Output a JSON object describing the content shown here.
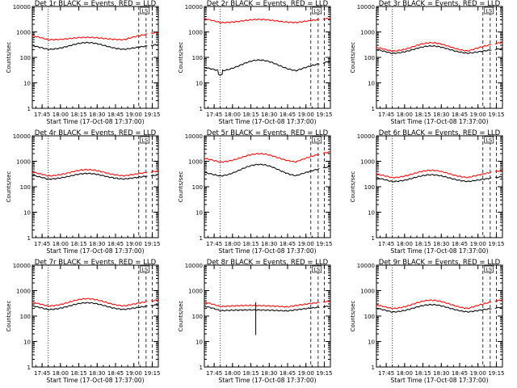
{
  "chart_data": [
    {
      "type": "line",
      "title": "Det 1r BLACK = Events, RED = LLD",
      "xlabel": "Start Time (17-Oct-08 17:37:00)",
      "ylabel": "Counts/sec",
      "yscale": "log",
      "ylim": [
        1,
        10000
      ],
      "x_ticks": [
        "17:45",
        "18:00",
        "18:15",
        "18:30",
        "18:45",
        "19:00",
        "19:15"
      ],
      "y_ticks": [
        "1",
        "10",
        "100",
        "1000",
        "10000"
      ],
      "annotation": "LS",
      "series": [
        {
          "color": "#ff0000",
          "profile": "main",
          "base": 490,
          "hump": 1.25,
          "end": 2.0
        },
        {
          "color": "#000000",
          "profile": "main",
          "base": 200,
          "hump": 1.9,
          "end": 1.6
        }
      ]
    },
    {
      "type": "line",
      "title": "Det 2r BLACK = Events, RED = LLD",
      "xlabel": "Start Time (17-Oct-08 17:37:00)",
      "ylabel": "Counts/sec",
      "yscale": "log",
      "ylim": [
        1,
        10000
      ],
      "x_ticks": [
        "17:45",
        "18:00",
        "18:15",
        "18:30",
        "18:45",
        "19:00",
        "19:15"
      ],
      "y_ticks": [
        "1",
        "10",
        "100",
        "1000",
        "10000"
      ],
      "annotation": "LS",
      "series": [
        {
          "color": "#ff0000",
          "profile": "flat",
          "base": 2300,
          "hump": 1.35,
          "end": 1.5
        },
        {
          "color": "#000000",
          "profile": "low",
          "base": 28,
          "hump": 2.8,
          "end": 2.5
        }
      ]
    },
    {
      "type": "line",
      "title": "Det 3r BLACK = Events, RED = LLD",
      "xlabel": "Start Time (17-Oct-08 17:37:00)",
      "ylabel": "Counts/sec",
      "yscale": "log",
      "ylim": [
        1,
        10000
      ],
      "x_ticks": [
        "17:45",
        "18:00",
        "18:15",
        "18:30",
        "18:45",
        "19:00",
        "19:15"
      ],
      "y_ticks": [
        "1",
        "10",
        "100",
        "1000",
        "10000"
      ],
      "annotation": "LS",
      "series": [
        {
          "color": "#ff0000",
          "profile": "main",
          "base": 170,
          "hump": 2.2,
          "end": 2.3
        },
        {
          "color": "#000000",
          "profile": "main",
          "base": 140,
          "hump": 2.0,
          "end": 1.6
        }
      ]
    },
    {
      "type": "line",
      "title": "Det 4r BLACK = Events, RED = LLD",
      "xlabel": "Start Time (17-Oct-08 17:37:00)",
      "ylabel": "Counts/sec",
      "yscale": "log",
      "ylim": [
        1,
        10000
      ],
      "x_ticks": [
        "17:45",
        "18:00",
        "18:15",
        "18:30",
        "18:45",
        "19:00",
        "19:15"
      ],
      "y_ticks": [
        "1",
        "10",
        "100",
        "1000",
        "10000"
      ],
      "annotation": "LS",
      "series": [
        {
          "color": "#ff0000",
          "profile": "main",
          "base": 260,
          "hump": 1.8,
          "end": 1.6
        },
        {
          "color": "#000000",
          "profile": "main",
          "base": 195,
          "hump": 1.7,
          "end": 1.5
        }
      ]
    },
    {
      "type": "line",
      "title": "Det 5r BLACK = Events, RED = LLD",
      "xlabel": "Start Time (17-Oct-08 17:37:00)",
      "ylabel": "Counts/sec",
      "yscale": "log",
      "ylim": [
        1,
        10000
      ],
      "x_ticks": [
        "17:45",
        "18:00",
        "18:15",
        "18:30",
        "18:45",
        "19:00",
        "19:15"
      ],
      "y_ticks": [
        "1",
        "10",
        "100",
        "1000",
        "10000"
      ],
      "annotation": "LS",
      "series": [
        {
          "color": "#ff0000",
          "profile": "main",
          "base": 900,
          "hump": 2.2,
          "end": 2.6
        },
        {
          "color": "#000000",
          "profile": "main",
          "base": 250,
          "hump": 3.0,
          "end": 2.5
        }
      ]
    },
    {
      "type": "line",
      "title": "Det 6r BLACK = Events, RED = LLD",
      "xlabel": "Start Time (17-Oct-08 17:37:00)",
      "ylabel": "Counts/sec",
      "yscale": "log",
      "ylim": [
        1,
        10000
      ],
      "x_ticks": [
        "17:45",
        "18:00",
        "18:15",
        "18:30",
        "18:45",
        "19:00",
        "19:15"
      ],
      "y_ticks": [
        "1",
        "10",
        "100",
        "1000",
        "10000"
      ],
      "annotation": "LS",
      "series": [
        {
          "color": "#ff0000",
          "profile": "main",
          "base": 220,
          "hump": 2.0,
          "end": 2.0
        },
        {
          "color": "#000000",
          "profile": "main",
          "base": 155,
          "hump": 1.9,
          "end": 1.6
        }
      ]
    },
    {
      "type": "line",
      "title": "Det 7r BLACK = Events, RED = LLD",
      "xlabel": "Start Time (17-Oct-08 17:37:00)",
      "ylabel": "Counts/sec",
      "yscale": "log",
      "ylim": [
        1,
        10000
      ],
      "x_ticks": [
        "17:45",
        "18:00",
        "18:15",
        "18:30",
        "18:45",
        "19:00",
        "19:15"
      ],
      "y_ticks": [
        "1",
        "10",
        "100",
        "1000",
        "10000"
      ],
      "annotation": "LS",
      "series": [
        {
          "color": "#ff0000",
          "profile": "main",
          "base": 240,
          "hump": 2.0,
          "end": 1.8
        },
        {
          "color": "#000000",
          "profile": "main",
          "base": 175,
          "hump": 1.9,
          "end": 1.6
        }
      ]
    },
    {
      "type": "line",
      "title": "Det 8r BLACK = Events, RED = LLD",
      "xlabel": "Start Time (17-Oct-08 17:37:00)",
      "ylabel": "Counts/sec",
      "yscale": "log",
      "ylim": [
        1,
        10000
      ],
      "x_ticks": [
        "17:45",
        "18:00",
        "18:15",
        "18:30",
        "18:45",
        "19:00",
        "19:15"
      ],
      "y_ticks": [
        "1",
        "10",
        "100",
        "1000",
        "10000"
      ],
      "annotation": "LS",
      "series": [
        {
          "color": "#ff0000",
          "profile": "spike",
          "base": 200,
          "hump": 1.3,
          "end": 1.9
        },
        {
          "color": "#000000",
          "profile": "spike",
          "base": 145,
          "hump": 1.2,
          "end": 1.7
        }
      ]
    },
    {
      "type": "line",
      "title": "Det 9r BLACK = Events, RED = LLD",
      "xlabel": "Start Time (17-Oct-08 17:37:00)",
      "ylabel": "Counts/sec",
      "yscale": "log",
      "ylim": [
        1,
        10000
      ],
      "x_ticks": [
        "17:45",
        "18:00",
        "18:15",
        "18:30",
        "18:45",
        "19:00",
        "19:15"
      ],
      "y_ticks": [
        "1",
        "10",
        "100",
        "1000",
        "10000"
      ],
      "annotation": "LS",
      "series": [
        {
          "color": "#ff0000",
          "profile": "main",
          "base": 190,
          "hump": 2.2,
          "end": 2.3
        },
        {
          "color": "#000000",
          "profile": "main",
          "base": 140,
          "hump": 2.0,
          "end": 1.6
        }
      ]
    }
  ]
}
